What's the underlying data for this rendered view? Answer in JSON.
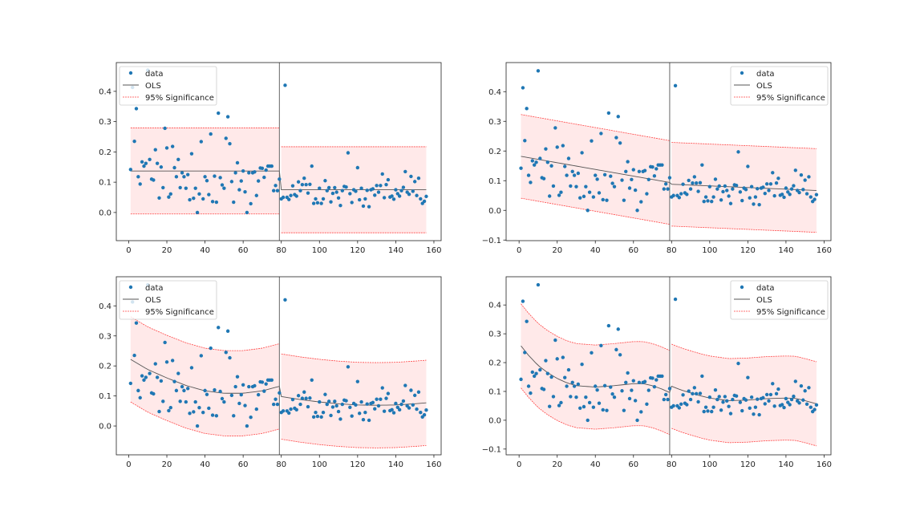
{
  "chart_data": {
    "type": "scatter",
    "grid": false,
    "colors": {
      "data": "#1f77b4",
      "ols": "#555555",
      "band_line": "#ff4444",
      "band_fill": "#ffe9e9"
    },
    "breakpoint_x": 79,
    "x": [
      1,
      2,
      3,
      4,
      5,
      6,
      7,
      8,
      9,
      10,
      11,
      12,
      13,
      14,
      15,
      16,
      17,
      18,
      19,
      20,
      21,
      22,
      23,
      24,
      25,
      26,
      27,
      28,
      29,
      30,
      31,
      32,
      33,
      34,
      35,
      36,
      37,
      38,
      39,
      40,
      41,
      42,
      43,
      44,
      45,
      46,
      47,
      48,
      49,
      50,
      51,
      52,
      53,
      54,
      55,
      56,
      57,
      58,
      59,
      60,
      61,
      62,
      63,
      64,
      65,
      66,
      67,
      68,
      69,
      70,
      71,
      72,
      73,
      74,
      75,
      76,
      77,
      78,
      79,
      80,
      81,
      82,
      83,
      84,
      85,
      86,
      87,
      88,
      89,
      90,
      91,
      92,
      93,
      94,
      95,
      96,
      97,
      98,
      99,
      100,
      101,
      102,
      103,
      104,
      105,
      106,
      107,
      108,
      109,
      110,
      111,
      112,
      113,
      114,
      115,
      116,
      117,
      118,
      119,
      120,
      121,
      122,
      123,
      124,
      125,
      126,
      127,
      128,
      129,
      130,
      131,
      132,
      133,
      134,
      135,
      136,
      137,
      138,
      139,
      140,
      141,
      142,
      143,
      144,
      145,
      146,
      147,
      148,
      149,
      150,
      151,
      152,
      153,
      154,
      155,
      156
    ],
    "y": [
      0.142,
      0.413,
      0.235,
      0.343,
      0.118,
      0.094,
      0.167,
      0.153,
      0.162,
      0.47,
      0.175,
      0.11,
      0.107,
      0.207,
      0.162,
      0.048,
      0.15,
      0.082,
      0.278,
      0.213,
      0.051,
      0.061,
      0.218,
      0.148,
      0.118,
      0.175,
      0.082,
      0.131,
      0.118,
      0.08,
      0.125,
      0.042,
      0.194,
      0.047,
      0.08,
      0.0,
      0.061,
      0.234,
      0.045,
      0.118,
      0.105,
      0.059,
      0.259,
      0.036,
      0.12,
      0.034,
      0.328,
      0.115,
      0.091,
      0.08,
      0.245,
      0.316,
      0.227,
      0.102,
      0.034,
      0.131,
      0.164,
      0.075,
      0.104,
      0.137,
      0.068,
      0.0,
      0.131,
      0.029,
      0.131,
      0.134,
      0.056,
      0.104,
      0.147,
      0.146,
      0.116,
      0.14,
      0.153,
      0.153,
      0.153,
      0.072,
      0.089,
      0.072,
      0.11,
      0.045,
      0.05,
      0.42,
      0.05,
      0.043,
      0.056,
      0.088,
      0.059,
      0.054,
      0.101,
      0.072,
      0.092,
      0.113,
      0.092,
      0.064,
      0.093,
      0.153,
      0.03,
      0.045,
      0.032,
      0.08,
      0.03,
      0.045,
      0.105,
      0.072,
      0.082,
      0.035,
      0.063,
      0.082,
      0.067,
      0.048,
      0.023,
      0.072,
      0.086,
      0.084,
      0.197,
      0.062,
      0.033,
      0.075,
      0.07,
      0.148,
      0.042,
      0.08,
      0.021,
      0.045,
      0.073,
      0.019,
      0.075,
      0.078,
      0.057,
      0.089,
      0.067,
      0.089,
      0.127,
      0.049,
      0.092,
      0.108,
      0.051,
      0.054,
      0.044,
      0.075,
      0.062,
      0.054,
      0.072,
      0.083,
      0.135,
      0.067,
      0.06,
      0.119,
      0.07,
      0.102,
      0.056,
      0.113,
      0.045,
      0.03,
      0.037,
      0.053
    ],
    "legend": {
      "data": "data",
      "ols": "OLS",
      "band": "95% Significance"
    },
    "panels": [
      {
        "legend_position": "upper-left",
        "xlim": [
          -6.5,
          163.8
        ],
        "ylim": [
          -0.093,
          0.495
        ],
        "xticks": [
          "0",
          "20",
          "40",
          "60",
          "80",
          "100",
          "120",
          "140",
          "160"
        ],
        "yticks": [
          "0.0",
          "0.1",
          "0.2",
          "0.3",
          "0.4"
        ],
        "ci_halfwidth": 0.142,
        "ols": [
          [
            [
              1,
              0.137
            ],
            [
              79,
              0.137
            ]
          ],
          [
            [
              80,
              0.075
            ],
            [
              156,
              0.075
            ]
          ]
        ]
      },
      {
        "legend_position": "upper-right",
        "xlim": [
          -6.8,
          163.6
        ],
        "ylim": [
          -0.102,
          0.498
        ],
        "xticks": [
          "0",
          "20",
          "40",
          "60",
          "80",
          "100",
          "120",
          "140",
          "160"
        ],
        "yticks": [
          "−0.1",
          "0.0",
          "0.1",
          "0.2",
          "0.3",
          "0.4"
        ],
        "ci_halfwidth": 0.141,
        "ols": [
          [
            [
              1,
              0.182
            ],
            [
              79,
              0.094
            ]
          ],
          [
            [
              80,
              0.088
            ],
            [
              156,
              0.067
            ]
          ]
        ]
      },
      {
        "legend_position": "upper-left",
        "xlim": [
          -6.5,
          163.8
        ],
        "ylim": [
          -0.096,
          0.497
        ],
        "xticks": [
          "0",
          "20",
          "40",
          "60",
          "80",
          "100",
          "120",
          "140",
          "160"
        ],
        "yticks": [
          "0.0",
          "0.1",
          "0.2",
          "0.3",
          "0.4"
        ],
        "ci_halfwidth": 0.142,
        "ols": [
          [
            [
              1,
              0.222
            ],
            [
              10,
              0.188
            ],
            [
              20,
              0.16
            ],
            [
              30,
              0.135
            ],
            [
              40,
              0.117
            ],
            [
              50,
              0.109
            ],
            [
              60,
              0.109
            ],
            [
              70,
              0.117
            ],
            [
              79,
              0.132
            ]
          ],
          [
            [
              80,
              0.098
            ],
            [
              90,
              0.088
            ],
            [
              100,
              0.08
            ],
            [
              110,
              0.074
            ],
            [
              120,
              0.07
            ],
            [
              130,
              0.069
            ],
            [
              140,
              0.07
            ],
            [
              150,
              0.074
            ],
            [
              156,
              0.077
            ]
          ]
        ]
      },
      {
        "legend_position": "upper-right",
        "xlim": [
          -6.8,
          163.6
        ],
        "ylim": [
          -0.12,
          0.498
        ],
        "xticks": [
          "0",
          "20",
          "40",
          "60",
          "80",
          "100",
          "120",
          "140",
          "160"
        ],
        "yticks": [
          "−0.1",
          "0.0",
          "0.1",
          "0.2",
          "0.3",
          "0.4"
        ],
        "ci_halfwidth": 0.146,
        "ols": [
          [
            [
              1,
              0.258
            ],
            [
              5,
              0.225
            ],
            [
              10,
              0.19
            ],
            [
              15,
              0.165
            ],
            [
              20,
              0.145
            ],
            [
              25,
              0.13
            ],
            [
              30,
              0.12
            ],
            [
              40,
              0.115
            ],
            [
              50,
              0.12
            ],
            [
              60,
              0.127
            ],
            [
              65,
              0.127
            ],
            [
              70,
              0.12
            ],
            [
              75,
              0.108
            ],
            [
              79,
              0.096
            ]
          ],
          [
            [
              80,
              0.118
            ],
            [
              85,
              0.105
            ],
            [
              90,
              0.095
            ],
            [
              95,
              0.085
            ],
            [
              100,
              0.077
            ],
            [
              110,
              0.068
            ],
            [
              120,
              0.07
            ],
            [
              130,
              0.075
            ],
            [
              140,
              0.077
            ],
            [
              145,
              0.076
            ],
            [
              150,
              0.068
            ],
            [
              156,
              0.057
            ]
          ]
        ]
      }
    ]
  }
}
